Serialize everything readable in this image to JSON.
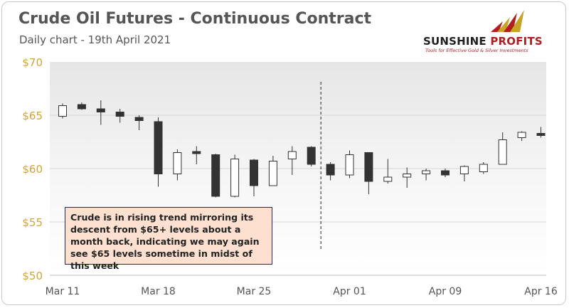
{
  "header": {
    "title": "Crude Oil Futures - Continuous Contract",
    "subtitle": "Daily chart - 19th April 2021"
  },
  "logo": {
    "name_part1": "SUNSHINE",
    "name_part2": "PROFITS",
    "tagline": "Tools for Effective Gold & Silver Investments"
  },
  "colors": {
    "axis_label": "#d4a437",
    "up_candle": "#ffffff",
    "down_candle": "#333333",
    "gridline": "#d6d6d6",
    "annotation_bg": "#fde0cf",
    "annotation_border": "#1a2a6c"
  },
  "chart_data": {
    "type": "candlestick",
    "title": "Crude Oil Futures - Continuous Contract",
    "subtitle": "Daily chart - 19th April 2021",
    "ylim": [
      50,
      70
    ],
    "yticks": [
      "$70",
      "$65",
      "$60",
      "$55",
      "$50"
    ],
    "ytick_values": [
      70,
      65,
      60,
      55,
      50
    ],
    "xticks": [
      {
        "label": "Mar 11",
        "index": 0
      },
      {
        "label": "Mar 18",
        "index": 5
      },
      {
        "label": "Mar 25",
        "index": 10
      },
      {
        "label": "Apr 01",
        "index": 15
      },
      {
        "label": "Apr 09",
        "index": 20
      },
      {
        "label": "Apr 16",
        "index": 25
      }
    ],
    "grid": true,
    "legend": "none",
    "candles": [
      {
        "open": 64.9,
        "high": 66.1,
        "low": 64.7,
        "close": 65.9
      },
      {
        "open": 66.0,
        "high": 66.2,
        "low": 65.5,
        "close": 65.6
      },
      {
        "open": 65.6,
        "high": 66.4,
        "low": 64.1,
        "close": 65.3
      },
      {
        "open": 65.3,
        "high": 65.6,
        "low": 64.3,
        "close": 64.9
      },
      {
        "open": 64.8,
        "high": 65.0,
        "low": 63.6,
        "close": 64.5
      },
      {
        "open": 64.4,
        "high": 64.8,
        "low": 58.3,
        "close": 59.5
      },
      {
        "open": 59.5,
        "high": 61.8,
        "low": 58.9,
        "close": 61.5
      },
      {
        "open": 61.6,
        "high": 62.1,
        "low": 60.4,
        "close": 61.4
      },
      {
        "open": 61.3,
        "high": 61.4,
        "low": 57.3,
        "close": 57.4
      },
      {
        "open": 57.4,
        "high": 61.3,
        "low": 57.3,
        "close": 60.9
      },
      {
        "open": 60.8,
        "high": 60.9,
        "low": 57.4,
        "close": 58.4
      },
      {
        "open": 58.4,
        "high": 61.2,
        "low": 58.4,
        "close": 60.7
      },
      {
        "open": 60.9,
        "high": 62.1,
        "low": 59.4,
        "close": 61.6
      },
      {
        "open": 62.0,
        "high": 62.1,
        "low": 60.2,
        "close": 60.4
      },
      {
        "open": 60.4,
        "high": 60.6,
        "low": 58.9,
        "close": 59.4
      },
      {
        "open": 59.4,
        "high": 61.7,
        "low": 59.1,
        "close": 61.3
      },
      {
        "open": 61.5,
        "high": 61.5,
        "low": 57.6,
        "close": 58.8
      },
      {
        "open": 58.8,
        "high": 60.9,
        "low": 58.6,
        "close": 59.2
      },
      {
        "open": 59.2,
        "high": 60.1,
        "low": 58.2,
        "close": 59.5
      },
      {
        "open": 59.5,
        "high": 60.0,
        "low": 58.9,
        "close": 59.8
      },
      {
        "open": 59.8,
        "high": 60.0,
        "low": 59.2,
        "close": 59.4
      },
      {
        "open": 59.5,
        "high": 60.3,
        "low": 58.8,
        "close": 60.2
      },
      {
        "open": 59.7,
        "high": 60.6,
        "low": 59.5,
        "close": 60.4
      },
      {
        "open": 60.4,
        "high": 63.4,
        "low": 60.4,
        "close": 62.7
      },
      {
        "open": 62.9,
        "high": 63.5,
        "low": 62.6,
        "close": 63.4
      },
      {
        "open": 63.3,
        "high": 63.9,
        "low": 62.9,
        "close": 63.1
      }
    ],
    "vline_index": 13.5,
    "annotation": "Crude is in rising trend mirroring its descent from $65+ levels about a month back, indicating we may again see $65 levels sometime in midst of this week"
  }
}
